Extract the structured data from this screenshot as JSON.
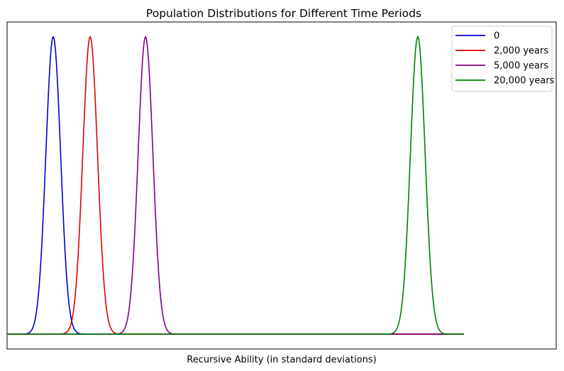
{
  "chart_data": {
    "type": "line",
    "title": "Population Distributions for Different Time Periods",
    "xlabel": "Recursive Ability (in standard deviations)",
    "ylabel": "",
    "xlim": [
      0,
      11.9
    ],
    "ylim": [
      -0.05,
      1.05
    ],
    "x_ticks_shown": false,
    "y_ticks_shown": false,
    "grid": false,
    "legend_position": "top-right",
    "curve_x_range": [
      0,
      9.9
    ],
    "series": [
      {
        "name": "0",
        "color": "#0000cc",
        "mean": 1.0,
        "sd": 0.16,
        "peak": 1.0
      },
      {
        "name": "2,000 years",
        "color": "#dd0000",
        "mean": 1.8,
        "sd": 0.16,
        "peak": 1.0
      },
      {
        "name": "5,000 years",
        "color": "#800080",
        "mean": 3.0,
        "sd": 0.16,
        "peak": 1.0
      },
      {
        "name": "20,000 years",
        "color": "#008000",
        "mean": 8.9,
        "sd": 0.16,
        "peak": 1.0
      }
    ]
  }
}
